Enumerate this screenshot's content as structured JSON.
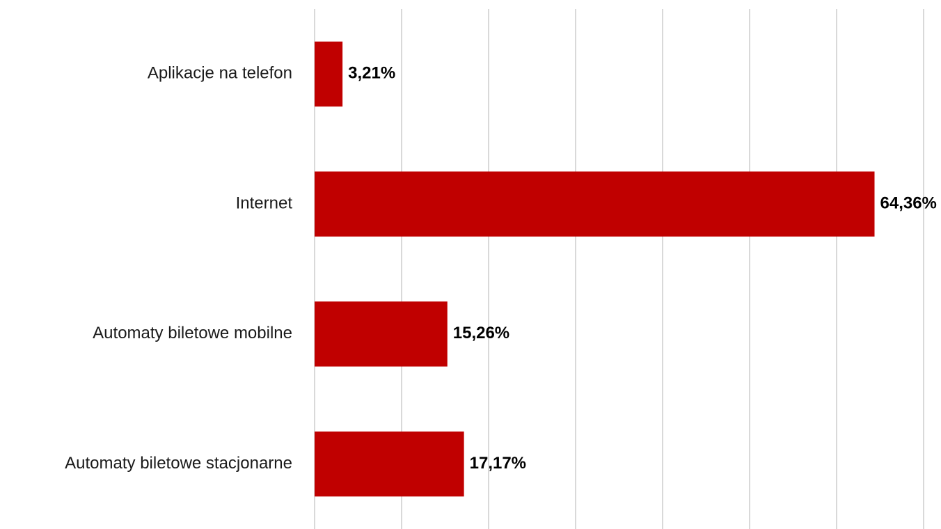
{
  "chart_data": {
    "type": "barh",
    "categories": [
      "Aplikacje na telefon",
      "Internet",
      "Automaty biletowe mobilne",
      "Automaty biletowe stacjonarne"
    ],
    "values": [
      3.21,
      64.36,
      15.26,
      17.17
    ],
    "value_labels": [
      "3,21%",
      "64,36%",
      "15,26%",
      "17,17%"
    ],
    "color": "#c00000",
    "xlim": [
      0,
      70
    ],
    "xticks": [
      0,
      10,
      20,
      30,
      40,
      50,
      60,
      70
    ],
    "grid": true
  }
}
